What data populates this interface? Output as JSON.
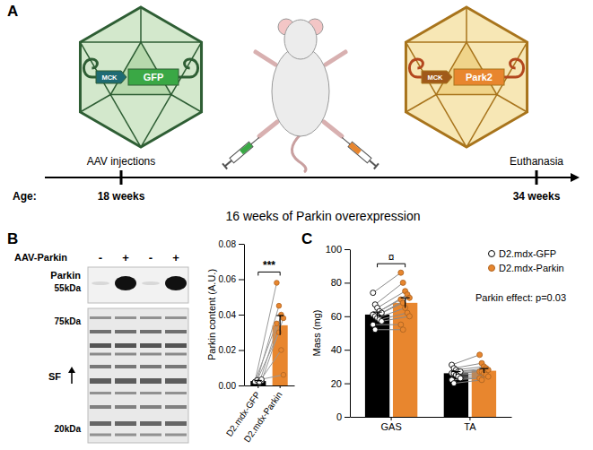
{
  "panel_labels": [
    "A",
    "B",
    "C"
  ],
  "diagram": {
    "vectors": [
      {
        "promoter": "MCK",
        "gene": "GFP"
      },
      {
        "promoter": "MCK",
        "gene": "Park2"
      }
    ],
    "timeline": {
      "events": [
        "AAV injections",
        "Euthanasia"
      ],
      "age_label": "Age:",
      "ages": [
        "18 weeks",
        "34 weeks"
      ],
      "duration": "16 weeks of Parkin overexpression"
    }
  },
  "blot": {
    "treatment_label": "AAV-Parkin",
    "lanes": [
      "-",
      "+",
      "-",
      "+"
    ],
    "panels": [
      {
        "label": "Parkin",
        "markers": [
          "55kDa"
        ]
      },
      {
        "label": "SF",
        "markers": [
          "75kDa",
          "20kDa"
        ]
      }
    ]
  },
  "chart_data": [
    {
      "type": "bar",
      "categories": [
        "D2.mdx-GFP",
        "D2.mdx-Parkin"
      ],
      "values": [
        0.0025,
        0.034
      ],
      "errors": [
        0.0003,
        0.0055
      ],
      "colors": [
        "#000000",
        "#e8862e"
      ],
      "points": [
        [
          0.002,
          0.003,
          0.0015,
          0.0025,
          0.002,
          0.003,
          0.002,
          0.0035
        ],
        [
          0.058,
          0.045,
          0.04,
          0.038,
          0.035,
          0.03,
          0.02,
          0.006
        ]
      ],
      "ylabel": "Parkin content (A.U.)",
      "ylim": [
        0,
        0.08
      ],
      "yticks": [
        {
          "value": 0,
          "label": "0.00"
        },
        {
          "value": 0.02,
          "label": "0.02"
        },
        {
          "value": 0.04,
          "label": "0.04"
        },
        {
          "value": 0.06,
          "label": "0.06"
        },
        {
          "value": 0.08,
          "label": "0.08"
        }
      ],
      "annotations": [
        "***"
      ]
    },
    {
      "type": "bar",
      "categories": [
        "GAS",
        "TA"
      ],
      "series": [
        {
          "name": "D2.mdx-GFP",
          "color": "#000000",
          "values": [
            61,
            26
          ],
          "errors": [
            1.5,
            1
          ],
          "points": [
            [
              74,
              67,
              65,
              63,
              62,
              61,
              60,
              59,
              58,
              57,
              55,
              52
            ],
            [
              31,
              29,
              28,
              27,
              27,
              26,
              26,
              25,
              24,
              23,
              22,
              20
            ]
          ]
        },
        {
          "name": "D2.mdx-Parkin",
          "color": "#e8862e",
          "values": [
            68,
            27.5
          ],
          "errors": [
            3,
            1.3
          ],
          "points": [
            [
              86,
              80,
              75,
              73,
              71,
              70,
              68,
              65,
              62,
              60,
              55,
              52
            ],
            [
              37,
              32,
              30,
              29,
              28,
              27,
              27,
              26,
              25,
              24,
              23,
              22
            ]
          ]
        }
      ],
      "ylabel": "Mass (mg)",
      "ylim": [
        0,
        100
      ],
      "yticks": [
        0,
        20,
        40,
        60,
        80,
        100
      ],
      "legend": "top-right",
      "annotations": [
        "¤",
        "Parkin effect: p=0.03"
      ]
    }
  ]
}
